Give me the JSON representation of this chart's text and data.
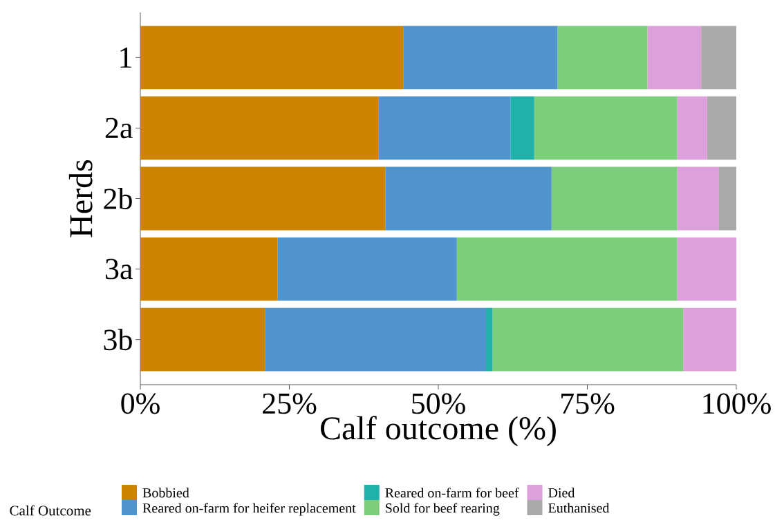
{
  "chart_data": {
    "type": "bar",
    "orientation": "horizontal",
    "stacked": true,
    "xlabel": "Calf outcome (%)",
    "ylabel": "Herds",
    "legend_title": "Calf Outcome",
    "legend": "bottom",
    "categories": [
      "1",
      "2a",
      "2b",
      "3a",
      "3b"
    ],
    "xlim": [
      0,
      100
    ],
    "xticks": [
      {
        "value": 0,
        "label": "0%"
      },
      {
        "value": 25,
        "label": "25%"
      },
      {
        "value": 50,
        "label": "50%"
      },
      {
        "value": 75,
        "label": "75%"
      },
      {
        "value": 100,
        "label": "100%"
      }
    ],
    "series": [
      {
        "name": "Bobbied",
        "color": "#cc8400",
        "values": [
          44.1,
          40.0,
          41.1,
          23.0,
          20.9
        ]
      },
      {
        "name": "Reared on-farm for heifer replacement",
        "color": "#4f94cd",
        "values": [
          25.9,
          22.1,
          27.9,
          30.1,
          37.1
        ]
      },
      {
        "name": "Reared on-farm for beef",
        "color": "#20b2aa",
        "values": [
          0,
          4.0,
          0,
          0,
          1.1
        ]
      },
      {
        "name": "Sold for beef rearing",
        "color": "#7ccd7c",
        "values": [
          15.1,
          24.0,
          21.1,
          37.0,
          32.0
        ]
      },
      {
        "name": "Died",
        "color": "#dda0dd",
        "values": [
          9.0,
          5.0,
          7.0,
          9.9,
          8.9
        ]
      },
      {
        "name": "Euthanised",
        "color": "#a9a9a9",
        "values": [
          5.9,
          4.9,
          2.9,
          0,
          0
        ]
      }
    ]
  }
}
